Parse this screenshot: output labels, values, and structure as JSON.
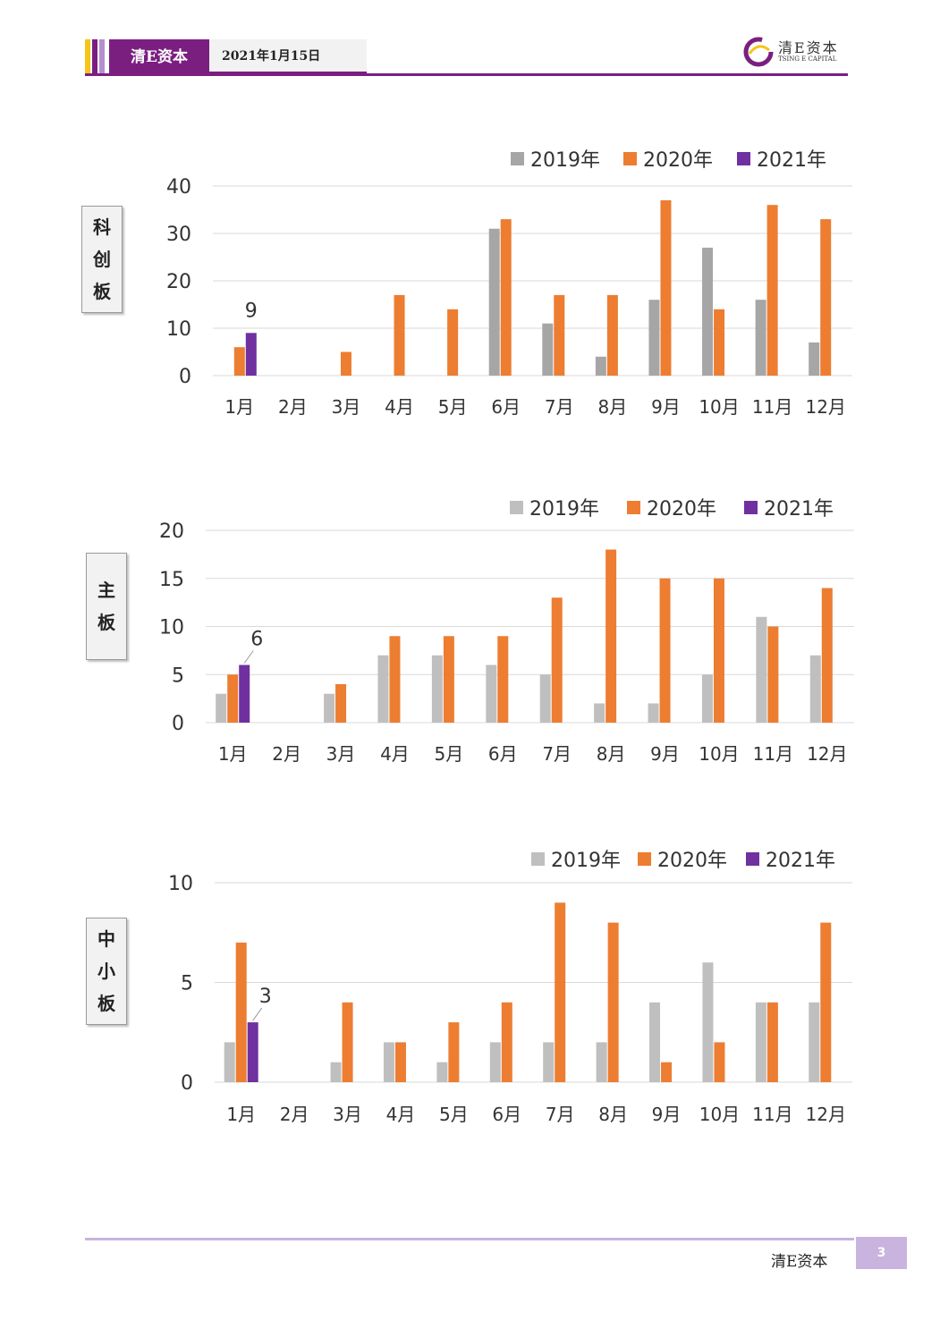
{
  "header": {
    "brand": "清E资本",
    "date": "2021年1月15日",
    "logo_cn": "清E资本",
    "logo_en": "TSING E CAPITAL",
    "bar_colors": [
      "#f5c518",
      "#7a1f80",
      "#b38fd0"
    ]
  },
  "footer": {
    "brand": "清E资本",
    "page": "3"
  },
  "colors": {
    "2019年": "#a6a6a6",
    "2020年": "#ed7d31",
    "2021年": "#7030a0"
  },
  "chart_data": [
    {
      "type": "bar",
      "side_label": [
        "科",
        "创",
        "板"
      ],
      "categories": [
        "1月",
        "2月",
        "3月",
        "4月",
        "5月",
        "6月",
        "7月",
        "8月",
        "9月",
        "10月",
        "11月",
        "12月"
      ],
      "ylim": [
        0,
        40
      ],
      "yticks": [
        "0",
        "10",
        "20",
        "30",
        "40"
      ],
      "legend_position": "top-right",
      "grid": true,
      "series": [
        {
          "name": "2019年",
          "color": "#a6a6a6",
          "values": [
            0,
            0,
            0,
            0,
            0,
            31,
            11,
            4,
            16,
            27,
            16,
            7
          ]
        },
        {
          "name": "2020年",
          "color": "#ed7d31",
          "values": [
            6,
            0,
            5,
            17,
            14,
            33,
            17,
            17,
            37,
            14,
            36,
            33
          ]
        },
        {
          "name": "2021年",
          "color": "#7030a0",
          "values": [
            9,
            0,
            0,
            0,
            0,
            0,
            0,
            0,
            0,
            0,
            0,
            0
          ]
        }
      ],
      "data_label": {
        "series": 2,
        "index": 0,
        "text": "9"
      }
    },
    {
      "type": "bar",
      "side_label": [
        "主",
        "板"
      ],
      "categories": [
        "1月",
        "2月",
        "3月",
        "4月",
        "5月",
        "6月",
        "7月",
        "8月",
        "9月",
        "10月",
        "11月",
        "12月"
      ],
      "ylim": [
        0,
        20
      ],
      "yticks": [
        "0",
        "5",
        "10",
        "15",
        "20"
      ],
      "legend_position": "top-right",
      "grid": true,
      "series": [
        {
          "name": "2019年",
          "color": "#bfbfbf",
          "values": [
            3,
            0,
            3,
            7,
            7,
            6,
            5,
            2,
            2,
            5,
            11,
            7
          ]
        },
        {
          "name": "2020年",
          "color": "#ed7d31",
          "values": [
            5,
            0,
            4,
            9,
            9,
            9,
            13,
            18,
            15,
            15,
            10,
            14
          ]
        },
        {
          "name": "2021年",
          "color": "#7030a0",
          "values": [
            6,
            0,
            0,
            0,
            0,
            0,
            0,
            0,
            0,
            0,
            0,
            0
          ]
        }
      ],
      "data_label": {
        "series": 2,
        "index": 0,
        "text": "6"
      }
    },
    {
      "type": "bar",
      "side_label": [
        "中",
        "小",
        "板"
      ],
      "categories": [
        "1月",
        "2月",
        "3月",
        "4月",
        "5月",
        "6月",
        "7月",
        "8月",
        "9月",
        "10月",
        "11月",
        "12月"
      ],
      "ylim": [
        0,
        10
      ],
      "yticks": [
        "0",
        "5",
        "10"
      ],
      "legend_position": "top-right",
      "grid": true,
      "series": [
        {
          "name": "2019年",
          "color": "#bfbfbf",
          "values": [
            2,
            0,
            1,
            2,
            1,
            2,
            2,
            2,
            4,
            6,
            4,
            4
          ]
        },
        {
          "name": "2020年",
          "color": "#ed7d31",
          "values": [
            7,
            0,
            4,
            2,
            3,
            4,
            9,
            8,
            1,
            2,
            4,
            8
          ]
        },
        {
          "name": "2021年",
          "color": "#7030a0",
          "values": [
            3,
            0,
            0,
            0,
            0,
            0,
            0,
            0,
            0,
            0,
            0,
            0
          ]
        }
      ],
      "data_label": {
        "series": 2,
        "index": 0,
        "text": "3"
      }
    }
  ]
}
